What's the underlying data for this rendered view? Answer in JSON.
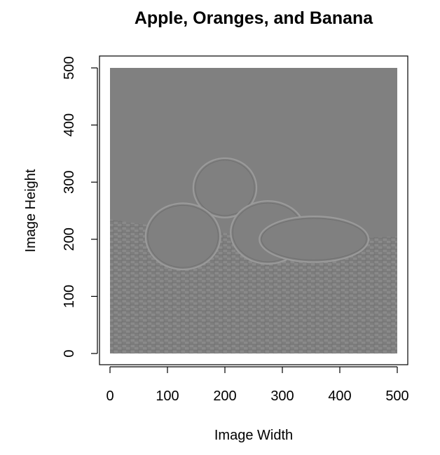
{
  "chart_data": {
    "type": "image",
    "title": "Apple, Oranges, and Banana",
    "xlabel": "Image Width",
    "ylabel": "Image Height",
    "xlim": [
      0,
      500
    ],
    "ylim": [
      0,
      500
    ],
    "xticks": [
      0,
      100,
      200,
      300,
      400,
      500
    ],
    "yticks": [
      0,
      100,
      200,
      300,
      400,
      500
    ],
    "image_description": "grayscale high-pass filtered photo of an apple, two oranges and a banana on a woven mat",
    "background_gray": "#808080",
    "objects": [
      {
        "name": "orange-top",
        "cx": 200,
        "cy": 290,
        "rx": 55,
        "ry": 52
      },
      {
        "name": "apple-left",
        "cx": 127,
        "cy": 205,
        "rx": 65,
        "ry": 58
      },
      {
        "name": "orange-right",
        "cx": 275,
        "cy": 212,
        "rx": 65,
        "ry": 55
      },
      {
        "name": "banana",
        "cx": 355,
        "cy": 200,
        "rx": 95,
        "ry": 40
      }
    ],
    "mat_top_y": 235
  }
}
